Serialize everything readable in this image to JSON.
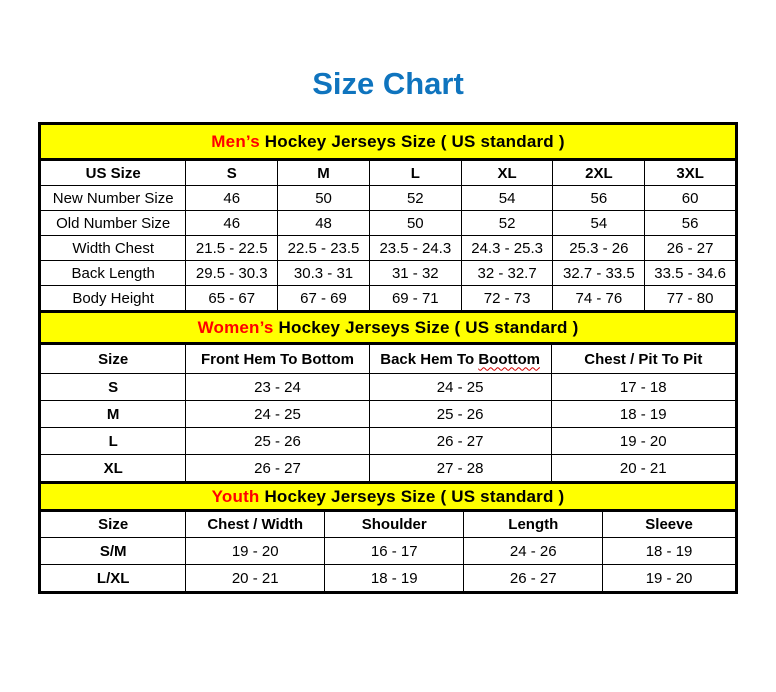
{
  "page": {
    "title": "Size Chart"
  },
  "colors": {
    "title_blue": "#0F74BE",
    "banner_yellow": "#FFFF00",
    "banner_red": "#FF0000",
    "border_black": "#000000"
  },
  "mens": {
    "banner_highlight": "Men’s",
    "banner_rest": " Hockey Jerseys Size ( US standard )",
    "columns": [
      "US Size",
      "S",
      "M",
      "L",
      "XL",
      "2XL",
      "3XL"
    ],
    "rows": [
      {
        "label": "New Number Size",
        "values": [
          "46",
          "50",
          "52",
          "54",
          "56",
          "60"
        ]
      },
      {
        "label": "Old Number Size",
        "values": [
          "46",
          "48",
          "50",
          "52",
          "54",
          "56"
        ]
      },
      {
        "label": "Width Chest",
        "values": [
          "21.5 - 22.5",
          "22.5 - 23.5",
          "23.5 - 24.3",
          "24.3 - 25.3",
          "25.3 - 26",
          "26 - 27"
        ]
      },
      {
        "label": "Back Length",
        "values": [
          "29.5 - 30.3",
          "30.3 - 31",
          "31 - 32",
          "32 - 32.7",
          "32.7 - 33.5",
          "33.5 - 34.6"
        ]
      },
      {
        "label": "Body Height",
        "values": [
          "65 - 67",
          "67 - 69",
          "69 - 71",
          "72 - 73",
          "74 - 76",
          "77 - 80"
        ]
      }
    ]
  },
  "women": {
    "banner_highlight": "Women’s",
    "banner_rest": " Hockey Jerseys Size ( US standard )",
    "columns": [
      "Size",
      "Front Hem To Bottom",
      "Back Hem To Boottom",
      "Chest / Pit To Pit"
    ],
    "misspelled_word": "Boottom",
    "rows": [
      {
        "label": "S",
        "values": [
          "23 - 24",
          "24 - 25",
          "17 - 18"
        ]
      },
      {
        "label": "M",
        "values": [
          "24 - 25",
          "25 - 26",
          "18 - 19"
        ]
      },
      {
        "label": "L",
        "values": [
          "25 - 26",
          "26 - 27",
          "19 - 20"
        ]
      },
      {
        "label": "XL",
        "values": [
          "26 - 27",
          "27 - 28",
          "20 - 21"
        ]
      }
    ]
  },
  "youth": {
    "banner_highlight": "Youth",
    "banner_rest": " Hockey Jerseys Size ( US standard )",
    "columns": [
      "Size",
      "Chest / Width",
      "Shoulder",
      "Length",
      "Sleeve"
    ],
    "rows": [
      {
        "label": "S/M",
        "values": [
          "19 - 20",
          "16 - 17",
          "24 - 26",
          "18 - 19"
        ]
      },
      {
        "label": "L/XL",
        "values": [
          "20 - 21",
          "18 - 19",
          "26 - 27",
          "19 - 20"
        ]
      }
    ]
  }
}
